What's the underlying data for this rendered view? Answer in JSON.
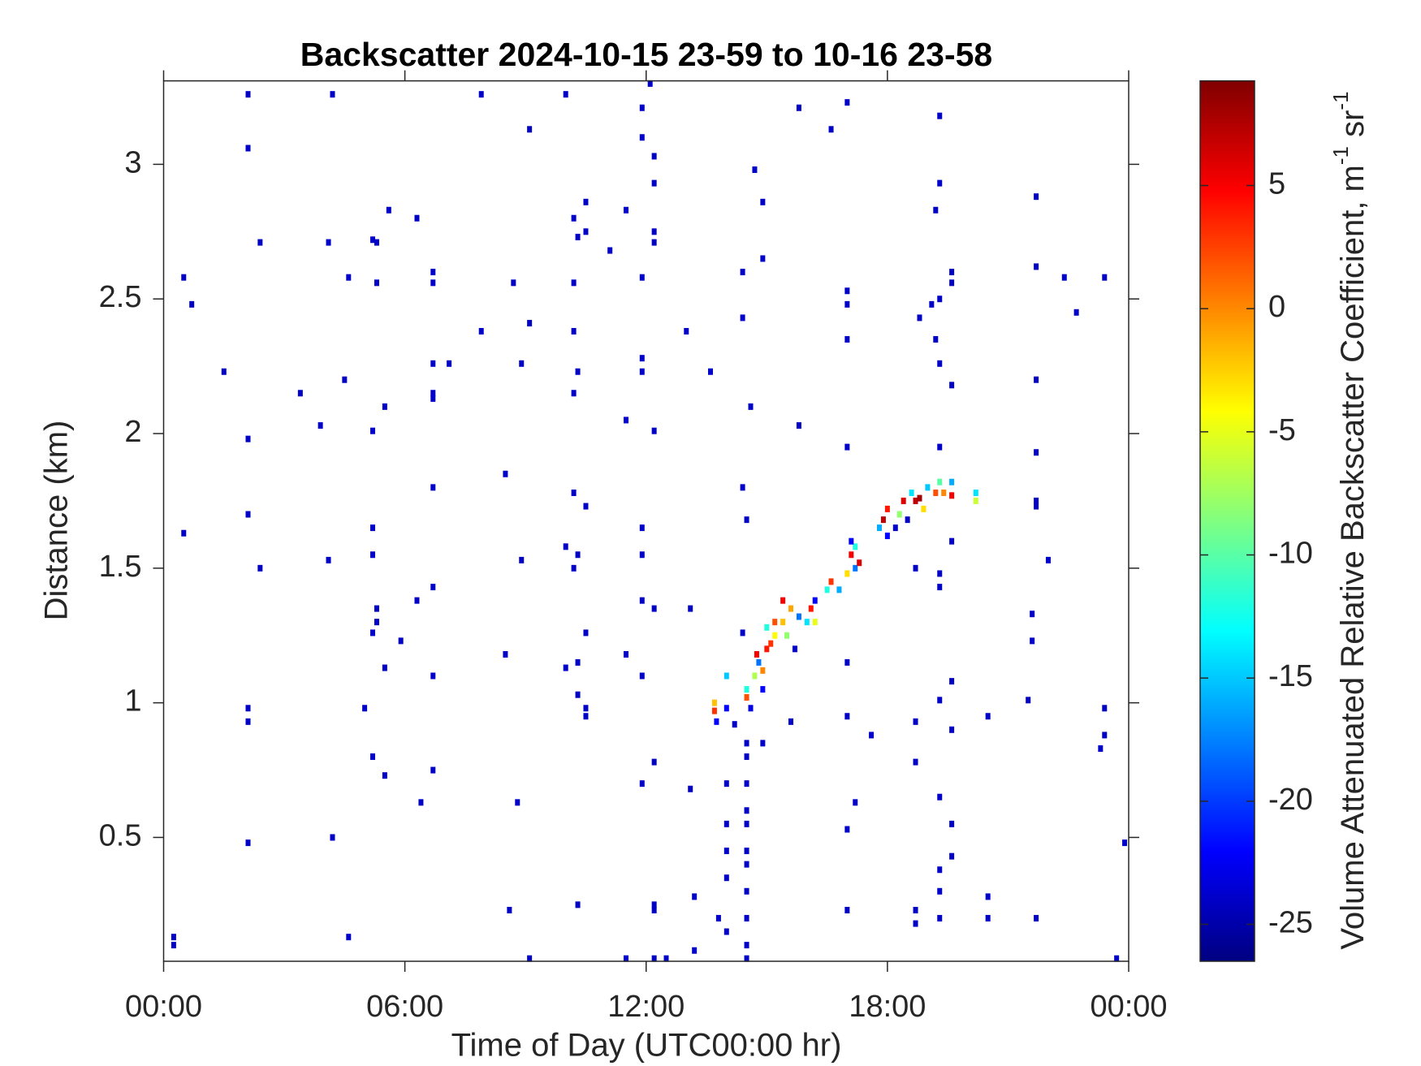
{
  "chart_data": {
    "type": "heatmap",
    "title": "Backscatter 2024-10-15 23-59 to 10-16 23-58",
    "xlabel": "Time of Day (UTC00:00 hr)",
    "ylabel": "Distance (km)",
    "colorbar_label": [
      "Volume Attenuated Relative Backscatter Coefficient, m",
      "-1",
      " sr",
      "-1"
    ],
    "colormap": "jet",
    "grid": false,
    "xlim": [
      0,
      24
    ],
    "ylim": [
      0.04,
      3.31
    ],
    "clim": [
      -26.5,
      9.25
    ],
    "xticks": [
      {
        "value": 0,
        "label": "00:00"
      },
      {
        "value": 6,
        "label": "06:00"
      },
      {
        "value": 12,
        "label": "12:00"
      },
      {
        "value": 18,
        "label": "18:00"
      },
      {
        "value": 24,
        "label": "00:00"
      }
    ],
    "yticks": [
      0.5,
      1,
      1.5,
      2,
      2.5,
      3
    ],
    "cticks": [
      -25,
      -20,
      -15,
      -10,
      -5,
      0,
      5
    ],
    "x": [
      2.1,
      4.2,
      7.9,
      10.0,
      12.1,
      11.9,
      15.8,
      17.0,
      19.3,
      2.1,
      9.1,
      16.6,
      11.9,
      12.2,
      14.7,
      12.2,
      19.3,
      21.7,
      10.5,
      14.9,
      11.5,
      5.6,
      19.2,
      6.3,
      10.2,
      10.5,
      12.2,
      5.2,
      10.3,
      2.4,
      4.1,
      5.3,
      12.2,
      11.1,
      14.9,
      21.7,
      6.7,
      14.4,
      19.6,
      0.5,
      4.6,
      11.9,
      22.4,
      23.4,
      5.3,
      6.7,
      8.7,
      10.2,
      19.6,
      17.0,
      19.3,
      0.7,
      17.0,
      19.1,
      22.7,
      14.4,
      18.8,
      9.1,
      7.9,
      10.2,
      13.0,
      19.2,
      17.0,
      11.9,
      19.3,
      6.7,
      7.1,
      8.9,
      1.5,
      10.3,
      11.9,
      13.6,
      4.5,
      21.7,
      19.6,
      3.4,
      6.7,
      10.2,
      6.7,
      5.5,
      14.6,
      11.5,
      3.9,
      15.8,
      5.2,
      12.2,
      2.1,
      21.7,
      17.0,
      19.3,
      8.5,
      6.7,
      14.4,
      10.2,
      21.7,
      10.5,
      21.7,
      2.1,
      14.5,
      11.9,
      5.2,
      0.5,
      19.6,
      10.0,
      5.2,
      11.9,
      10.3,
      4.1,
      8.9,
      22.0,
      2.4,
      10.2,
      18.7,
      19.3,
      6.7,
      19.3,
      6.3,
      11.9,
      5.3,
      12.2,
      13.1,
      21.6,
      5.3,
      5.2,
      10.5,
      14.4,
      5.9,
      21.6,
      8.5,
      11.5,
      5.5,
      10.0,
      10.3,
      17.0,
      6.7,
      11.9,
      19.6,
      10.3,
      19.3,
      21.5,
      2.1,
      5.0,
      10.5,
      23.4,
      17.0,
      20.5,
      2.1,
      10.5,
      15.6,
      18.7,
      19.6,
      17.6,
      23.4,
      14.9,
      23.3,
      5.2,
      12.2,
      18.7,
      6.7,
      5.5,
      11.9,
      13.1,
      19.3,
      6.4,
      8.8,
      17.2,
      19.6,
      17.0,
      4.2,
      2.1,
      23.9,
      19.6,
      19.3,
      14.0,
      19.3,
      13.2,
      20.5,
      10.3,
      12.2,
      8.6,
      17.0,
      18.7,
      12.2,
      13.8,
      19.3,
      20.5,
      21.7,
      18.7,
      4.6,
      14.0,
      0.25,
      0.25,
      9.1,
      11.5,
      12.2,
      12.5,
      13.2,
      23.7,
      14.5,
      14.5,
      14.5,
      14.5,
      14.5,
      14.5,
      14.5,
      14.5,
      14.5,
      14.5,
      14.5,
      14.0,
      14.0,
      14.0,
      13.7,
      13.7,
      13.75,
      14.0,
      14.0,
      14.2,
      14.5,
      14.5,
      14.6,
      14.7,
      14.75,
      14.8,
      14.9,
      14.9,
      15.0,
      15.0,
      15.1,
      15.2,
      15.2,
      15.4,
      15.4,
      15.5,
      15.6,
      15.7,
      15.8,
      16.0,
      16.1,
      16.2,
      16.2,
      16.5,
      16.6,
      16.8,
      17.0,
      17.1,
      17.2,
      17.2,
      17.3,
      17.1,
      17.8,
      17.9,
      18.0,
      18.0,
      18.2,
      18.3,
      18.4,
      18.5,
      18.6,
      18.7,
      18.8,
      18.9,
      19.0,
      19.2,
      19.3,
      19.4,
      19.6,
      19.6,
      20.2,
      20.2
    ],
    "y": [
      3.26,
      3.26,
      3.26,
      3.26,
      3.3,
      3.21,
      3.21,
      3.23,
      3.18,
      3.06,
      3.13,
      3.13,
      3.1,
      3.03,
      2.98,
      2.93,
      2.93,
      2.88,
      2.86,
      2.86,
      2.83,
      2.83,
      2.83,
      2.8,
      2.8,
      2.75,
      2.75,
      2.72,
      2.73,
      2.71,
      2.71,
      2.71,
      2.71,
      2.68,
      2.65,
      2.62,
      2.6,
      2.6,
      2.6,
      2.58,
      2.58,
      2.58,
      2.58,
      2.58,
      2.56,
      2.56,
      2.56,
      2.56,
      2.56,
      2.53,
      2.5,
      2.48,
      2.48,
      2.48,
      2.45,
      2.43,
      2.43,
      2.41,
      2.38,
      2.38,
      2.38,
      2.35,
      2.35,
      2.28,
      2.26,
      2.26,
      2.26,
      2.26,
      2.23,
      2.23,
      2.23,
      2.23,
      2.2,
      2.2,
      2.18,
      2.15,
      2.15,
      2.15,
      2.13,
      2.1,
      2.1,
      2.05,
      2.03,
      2.03,
      2.01,
      2.01,
      1.98,
      1.93,
      1.95,
      1.95,
      1.85,
      1.8,
      1.8,
      1.78,
      1.75,
      1.73,
      1.73,
      1.7,
      1.68,
      1.65,
      1.65,
      1.63,
      1.6,
      1.58,
      1.55,
      1.55,
      1.55,
      1.53,
      1.53,
      1.53,
      1.5,
      1.5,
      1.5,
      1.48,
      1.43,
      1.43,
      1.38,
      1.38,
      1.35,
      1.35,
      1.35,
      1.33,
      1.3,
      1.26,
      1.26,
      1.26,
      1.23,
      1.23,
      1.18,
      1.18,
      1.13,
      1.13,
      1.15,
      1.15,
      1.1,
      1.1,
      1.08,
      1.03,
      1.01,
      1.01,
      0.98,
      0.98,
      0.98,
      0.98,
      0.95,
      0.95,
      0.93,
      0.95,
      0.93,
      0.93,
      0.9,
      0.88,
      0.88,
      0.85,
      0.83,
      0.8,
      0.78,
      0.78,
      0.75,
      0.73,
      0.7,
      0.68,
      0.65,
      0.63,
      0.63,
      0.63,
      0.55,
      0.53,
      0.5,
      0.48,
      0.48,
      0.43,
      0.38,
      0.35,
      0.3,
      0.28,
      0.28,
      0.25,
      0.25,
      0.23,
      0.23,
      0.23,
      0.23,
      0.2,
      0.2,
      0.2,
      0.2,
      0.18,
      0.13,
      0.15,
      0.13,
      0.1,
      0.05,
      0.05,
      0.05,
      0.05,
      0.08,
      0.05,
      0.05,
      0.1,
      0.2,
      0.3,
      0.4,
      0.45,
      0.55,
      0.6,
      0.7,
      0.8,
      0.85,
      0.45,
      0.55,
      0.7,
      1.0,
      0.97,
      0.93,
      1.1,
      0.98,
      0.92,
      1.05,
      1.02,
      0.98,
      1.1,
      1.18,
      1.15,
      1.05,
      1.12,
      1.2,
      1.28,
      1.22,
      1.25,
      1.3,
      1.3,
      1.38,
      1.25,
      1.35,
      1.2,
      1.32,
      1.3,
      1.35,
      1.3,
      1.38,
      1.42,
      1.45,
      1.42,
      1.48,
      1.55,
      1.5,
      1.58,
      1.52,
      1.6,
      1.65,
      1.68,
      1.62,
      1.72,
      1.65,
      1.7,
      1.75,
      1.68,
      1.78,
      1.75,
      1.76,
      1.72,
      1.8,
      1.78,
      1.82,
      1.78,
      1.77,
      1.82,
      1.78,
      1.75
    ],
    "values": [
      -24,
      -24,
      -24,
      -24,
      -24,
      -24,
      -24,
      -24,
      -24,
      -24,
      -24,
      -24,
      -24,
      -24,
      -24,
      -24,
      -24,
      -24,
      -24,
      -24,
      -24,
      -24,
      -24,
      -24,
      -24,
      -24,
      -24,
      -24,
      -24,
      -24,
      -24,
      -24,
      -24,
      -24,
      -24,
      -24,
      -24,
      -24,
      -24,
      -24,
      -24,
      -24,
      -24,
      -24,
      -24,
      -24,
      -24,
      -24,
      -24,
      -24,
      -24,
      -24,
      -24,
      -24,
      -24,
      -24,
      -24,
      -24,
      -24,
      -24,
      -24,
      -24,
      -24,
      -24,
      -24,
      -24,
      -24,
      -24,
      -24,
      -24,
      -24,
      -24,
      -24,
      -24,
      -24,
      -24,
      -24,
      -24,
      -24,
      -24,
      -24,
      -24,
      -24,
      -24,
      -24,
      -24,
      -24,
      -24,
      -24,
      -24,
      -24,
      -24,
      -24,
      -24,
      -24,
      -24,
      -24,
      -24,
      -24,
      -24,
      -24,
      -24,
      -24,
      -24,
      -24,
      -24,
      -24,
      -24,
      -24,
      -24,
      -24,
      -24,
      -24,
      -24,
      -24,
      -24,
      -24,
      -24,
      -24,
      -24,
      -24,
      -24,
      -24,
      -24,
      -24,
      -24,
      -24,
      -24,
      -24,
      -24,
      -24,
      -24,
      -24,
      -24,
      -24,
      -24,
      -24,
      -24,
      -24,
      -24,
      -24,
      -24,
      -24,
      -24,
      -24,
      -24,
      -24,
      -24,
      -24,
      -24,
      -24,
      -24,
      -24,
      -24,
      -24,
      -24,
      -24,
      -24,
      -24,
      -24,
      -24,
      -24,
      -24,
      -24,
      -24,
      -24,
      -24,
      -24,
      -24,
      -24,
      -24,
      -24,
      -24,
      -24,
      -24,
      -24,
      -24,
      -24,
      -24,
      -24,
      -24,
      -24,
      -24,
      -24,
      -24,
      -24,
      -24,
      -24,
      -24,
      -24,
      -24,
      -24,
      -24,
      -24,
      -24,
      -24,
      -24,
      -24,
      -24,
      -24,
      -24,
      -24,
      -24,
      -24,
      -24,
      -24,
      -24,
      -24,
      -24,
      -24,
      -24,
      -24,
      -2,
      3,
      -22,
      -15,
      -22,
      -24,
      -12,
      2,
      -23,
      -7,
      5,
      -18,
      -22,
      0,
      4,
      -12,
      3,
      -4,
      2,
      -2,
      5,
      -8,
      -1,
      -24,
      -18,
      -14,
      4,
      -5,
      -22,
      -12,
      3,
      -16,
      -3,
      5,
      -18,
      -12,
      6,
      -22,
      -16,
      7,
      -22,
      4,
      -24,
      -8,
      6,
      -24,
      -14,
      7,
      8,
      -3,
      -15,
      2,
      -10,
      0,
      5,
      -16,
      -14,
      -6
    ]
  }
}
